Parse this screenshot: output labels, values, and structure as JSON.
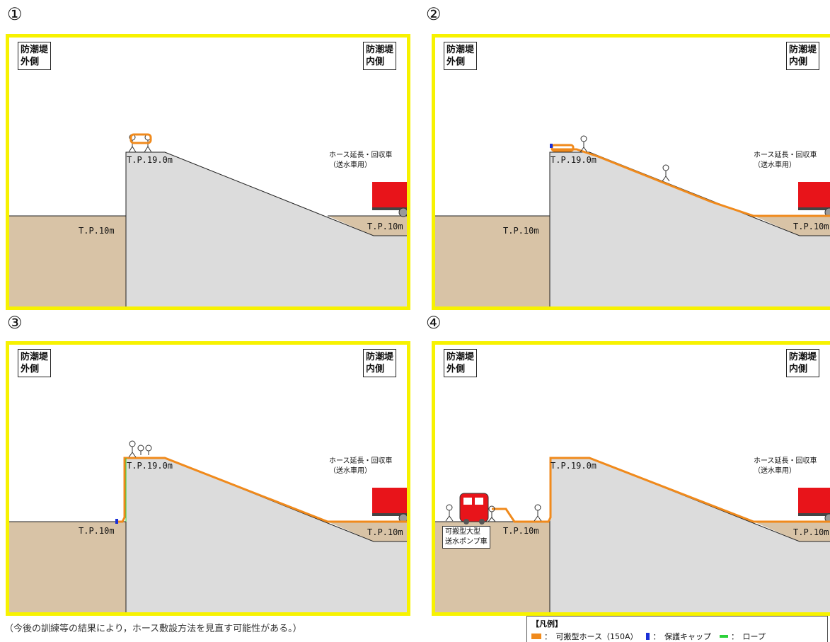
{
  "panels": [
    {
      "number": "①",
      "outer_label": "防潮堤\n外側",
      "inner_label": "防潮堤\n内側",
      "crest_level": "T.P.19.0m",
      "outer_level": "T.P.10m",
      "inner_level": "T.P.10m",
      "truck_label_line1": "ホース延長・回収車",
      "truck_label_line2": "（送水車用）"
    },
    {
      "number": "②",
      "outer_label": "防潮堤\n外側",
      "inner_label": "防潮堤\n内側",
      "crest_level": "T.P.19.0m",
      "outer_level": "T.P.10m",
      "inner_level": "T.P.10m",
      "truck_label_line1": "ホース延長・回収車",
      "truck_label_line2": "（送水車用）"
    },
    {
      "number": "③",
      "outer_label": "防潮堤\n外側",
      "inner_label": "防潮堤\n内側",
      "crest_level": "T.P.19.0m",
      "outer_level": "T.P.10m",
      "inner_level": "T.P.10m",
      "truck_label_line1": "ホース延長・回収車",
      "truck_label_line2": "（送水車用）"
    },
    {
      "number": "④",
      "outer_label": "防潮堤\n外側",
      "inner_label": "防潮堤\n内側",
      "crest_level": "T.P.19.0m",
      "outer_level": "T.P.10m",
      "inner_level": "T.P.10m",
      "truck_label_line1": "ホース延長・回収車",
      "truck_label_line2": "（送水車用）",
      "pump_label_line1": "可搬型大型",
      "pump_label_line2": "送水ポンプ車"
    }
  ],
  "note": "（今後の訓練等の結果により，ホース敷設方法を見直す可能性がある。）",
  "legend": {
    "title": "【凡例】",
    "hose": "：　可搬型ホース（150A）",
    "cap": "：　保護キャップ",
    "rope": "：　ロープ"
  },
  "colors": {
    "frame": "#f7f200",
    "hose": "#f08a1c",
    "ground": "#d8c3a6",
    "levee": "#dcdcdc",
    "truck": "#e8141a",
    "cap": "#1a2fd6",
    "rope": "#2bd13a"
  }
}
